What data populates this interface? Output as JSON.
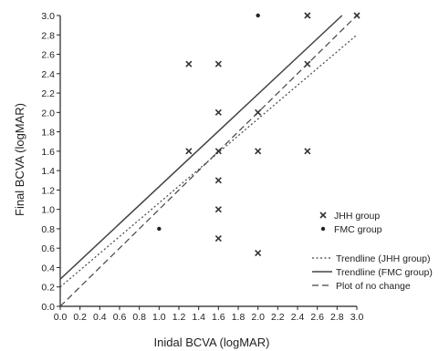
{
  "chart_data": {
    "type": "scatter",
    "title": "",
    "xlabel": "Inidal BCVA (logMAR)",
    "ylabel": "Final BCVA (logMAR)",
    "xlim": [
      0,
      3.0
    ],
    "ylim": [
      0,
      3.0
    ],
    "xticks": [
      "0.0",
      "0.2",
      "0.4",
      "0.6",
      "0.8",
      "1.0",
      "1.2",
      "1.4",
      "1.6",
      "1.8",
      "2.0",
      "2.2",
      "2.4",
      "2.6",
      "2.8",
      "3.0"
    ],
    "yticks": [
      "0.0",
      "0.2",
      "0.4",
      "0.6",
      "0.8",
      "1.0",
      "1.2",
      "1.4",
      "1.6",
      "1.8",
      "2.0",
      "2.2",
      "2.4",
      "2.6",
      "2.8",
      "3.0"
    ],
    "grid": false,
    "legend_position": "bottom-right",
    "series": [
      {
        "name": "JHH group",
        "marker": "x",
        "points": [
          {
            "x": 1.3,
            "y": 2.5
          },
          {
            "x": 1.6,
            "y": 2.5
          },
          {
            "x": 1.6,
            "y": 2.0
          },
          {
            "x": 1.3,
            "y": 1.6
          },
          {
            "x": 1.6,
            "y": 1.6
          },
          {
            "x": 1.6,
            "y": 1.3
          },
          {
            "x": 1.6,
            "y": 1.0
          },
          {
            "x": 1.6,
            "y": 0.7
          },
          {
            "x": 2.0,
            "y": 2.0
          },
          {
            "x": 2.0,
            "y": 1.6
          },
          {
            "x": 2.0,
            "y": 0.55
          },
          {
            "x": 2.5,
            "y": 3.0
          },
          {
            "x": 2.5,
            "y": 2.5
          },
          {
            "x": 2.5,
            "y": 1.6
          },
          {
            "x": 3.0,
            "y": 3.0
          }
        ]
      },
      {
        "name": "FMC group",
        "marker": "dot",
        "points": [
          {
            "x": 1.0,
            "y": 0.8
          },
          {
            "x": 2.0,
            "y": 3.0
          }
        ]
      }
    ],
    "lines": [
      {
        "name": "Trendline (JHH group)",
        "style": "dotted",
        "x": [
          0,
          3.0
        ],
        "y": [
          0.2,
          2.8
        ]
      },
      {
        "name": "Trendline (FMC group)",
        "style": "solid",
        "x": [
          0,
          2.85
        ],
        "y": [
          0.28,
          3.0
        ]
      },
      {
        "name": "Plot of no change",
        "style": "dashed",
        "x": [
          0,
          2.95
        ],
        "y": [
          0,
          2.95
        ]
      }
    ]
  }
}
